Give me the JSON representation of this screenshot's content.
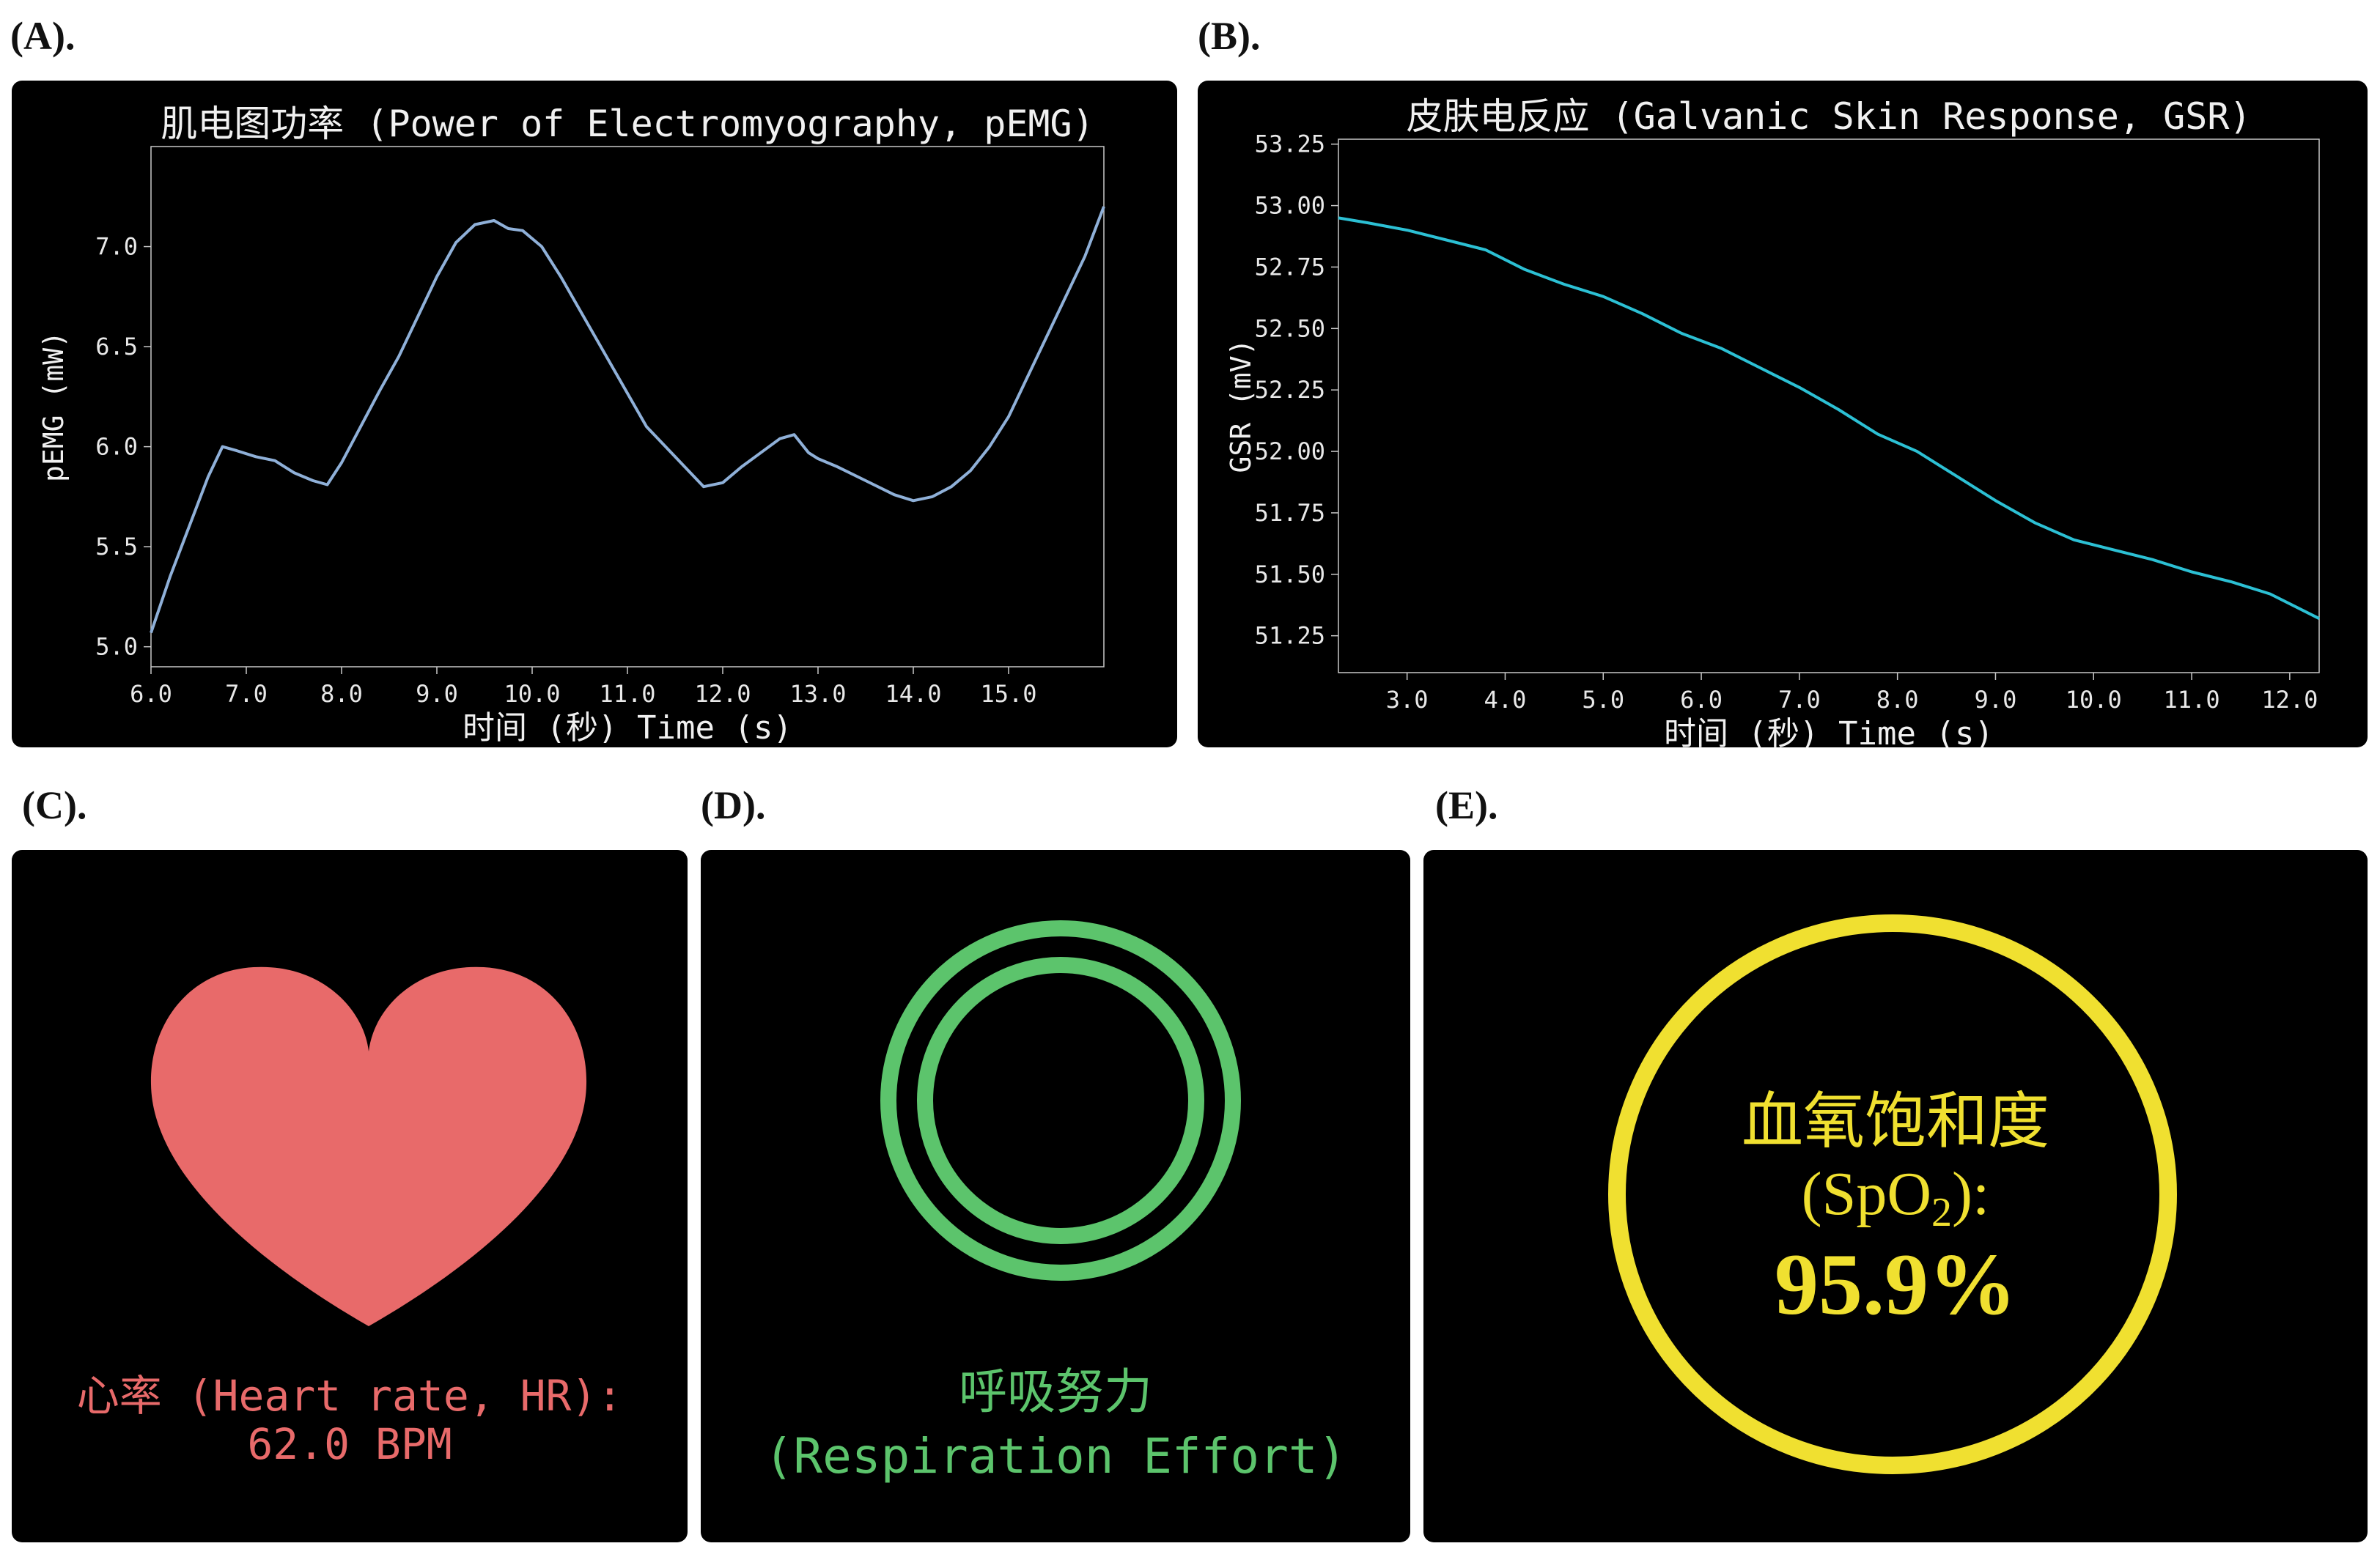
{
  "panels": {
    "a": {
      "label": "(A)."
    },
    "b": {
      "label": "(B)."
    },
    "c": {
      "label": "(C).",
      "title": "心率 (Heart rate, HR):",
      "value": "62.0 BPM",
      "color": "#e86a6a",
      "icon": "heart-icon"
    },
    "d": {
      "label": "(D).",
      "title": "呼吸努力",
      "subtitle": "(Respiration Effort)",
      "color": "#5cc46c",
      "icon": "double-ring-icon"
    },
    "e": {
      "label": "(E).",
      "title": "血氧饱和度",
      "sub_pre": "(SpO",
      "sub_sub": "2",
      "sub_post": "):",
      "value": "95.9%",
      "color": "#f0e030",
      "icon": "ring-icon"
    }
  },
  "chart_data": [
    {
      "type": "line",
      "title": "肌电图功率 (Power of Electromyography, pEMG)",
      "xlabel": "时间 (秒)  Time (s)",
      "ylabel": "pEMG (mW)",
      "xlim": [
        6.0,
        16.0
      ],
      "ylim": [
        4.9,
        7.5
      ],
      "xticks": [
        "6.0",
        "7.0",
        "8.0",
        "9.0",
        "10.0",
        "11.0",
        "12.0",
        "13.0",
        "14.0",
        "15.0"
      ],
      "yticks": [
        "5.0",
        "5.5",
        "6.0",
        "6.5",
        "7.0"
      ],
      "line_color": "#8fb0d8",
      "series": [
        {
          "x": [
            6.0,
            6.2,
            6.4,
            6.6,
            6.75,
            6.9,
            7.1,
            7.3,
            7.5,
            7.7,
            7.85,
            8.0,
            8.2,
            8.4,
            8.6,
            8.8,
            9.0,
            9.2,
            9.4,
            9.6,
            9.75,
            9.9,
            10.1,
            10.3,
            10.6,
            10.9,
            11.2,
            11.5,
            11.8,
            12.0,
            12.2,
            12.4,
            12.6,
            12.75,
            12.9,
            13.0,
            13.2,
            13.5,
            13.8,
            14.0,
            14.2,
            14.4,
            14.6,
            14.8,
            15.0,
            15.2,
            15.4,
            15.6,
            15.8,
            16.0
          ],
          "y": [
            5.07,
            5.35,
            5.6,
            5.85,
            6.0,
            5.98,
            5.95,
            5.93,
            5.87,
            5.83,
            5.81,
            5.92,
            6.1,
            6.28,
            6.45,
            6.65,
            6.85,
            7.02,
            7.11,
            7.13,
            7.09,
            7.08,
            7.0,
            6.85,
            6.6,
            6.35,
            6.1,
            5.95,
            5.8,
            5.82,
            5.9,
            5.97,
            6.04,
            6.06,
            5.97,
            5.94,
            5.9,
            5.83,
            5.76,
            5.73,
            5.75,
            5.8,
            5.88,
            6.0,
            6.15,
            6.35,
            6.55,
            6.75,
            6.95,
            7.2
          ]
        }
      ]
    },
    {
      "type": "line",
      "title": "皮肤电反应 (Galvanic Skin Response, GSR)",
      "xlabel": "时间 (秒)  Time (s)",
      "ylabel": "GSR (mV)",
      "xlim": [
        2.3,
        12.3
      ],
      "ylim": [
        51.1,
        53.27
      ],
      "xticks": [
        "3.0",
        "4.0",
        "5.0",
        "6.0",
        "7.0",
        "8.0",
        "9.0",
        "10.0",
        "11.0",
        "12.0"
      ],
      "yticks": [
        "51.25",
        "51.50",
        "51.75",
        "52.00",
        "52.25",
        "52.50",
        "52.75",
        "53.00",
        "53.25"
      ],
      "line_color": "#2cc0d4",
      "series": [
        {
          "x": [
            2.3,
            2.6,
            3.0,
            3.4,
            3.8,
            4.2,
            4.6,
            5.0,
            5.4,
            5.8,
            6.2,
            6.6,
            7.0,
            7.4,
            7.8,
            8.2,
            8.6,
            9.0,
            9.4,
            9.8,
            10.2,
            10.6,
            11.0,
            11.4,
            11.8,
            12.3
          ],
          "y": [
            52.95,
            52.93,
            52.9,
            52.86,
            52.82,
            52.74,
            52.68,
            52.63,
            52.56,
            52.48,
            52.42,
            52.34,
            52.26,
            52.17,
            52.07,
            52.0,
            51.9,
            51.8,
            51.71,
            51.64,
            51.6,
            51.56,
            51.51,
            51.47,
            51.42,
            51.32
          ]
        }
      ]
    }
  ]
}
